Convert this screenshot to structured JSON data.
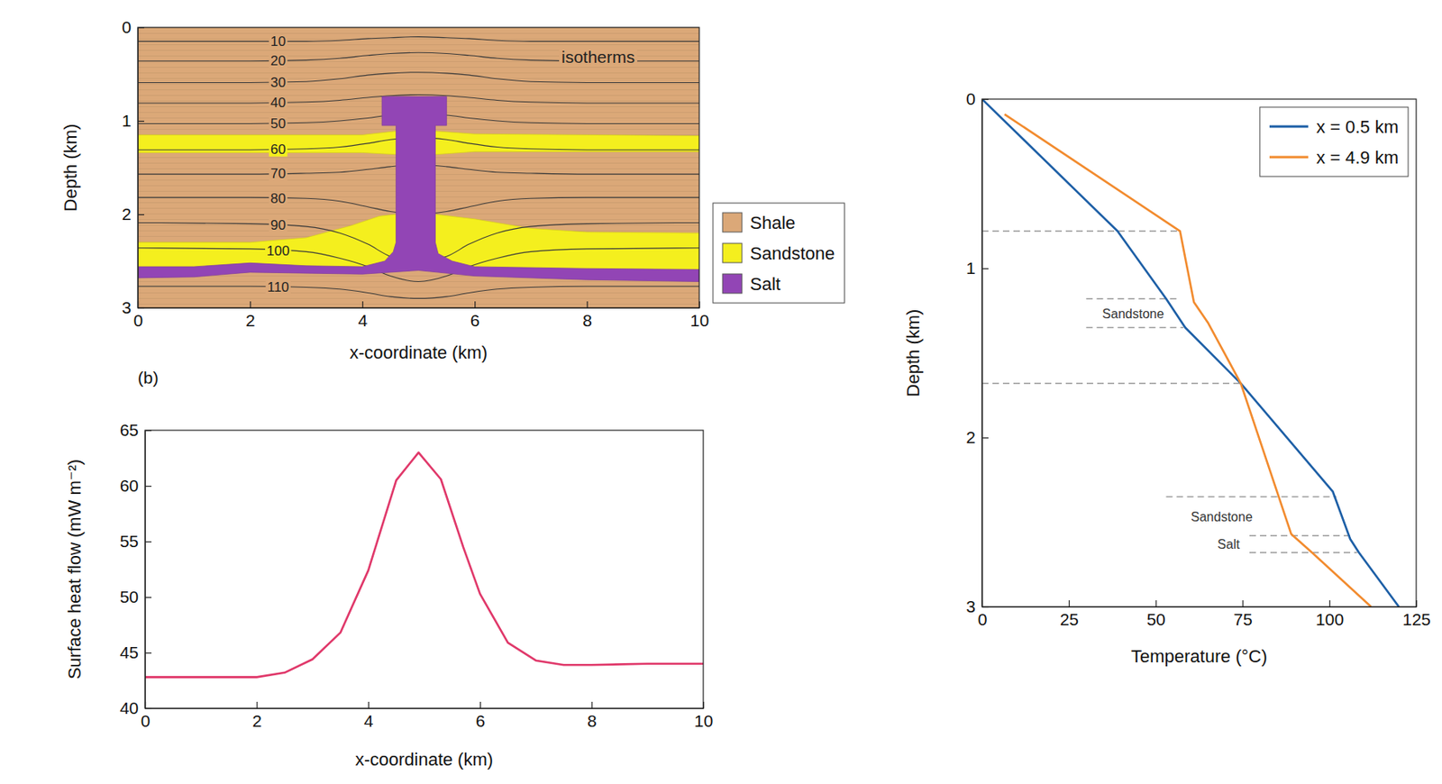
{
  "chart_data": [
    {
      "type": "cross_section",
      "xlim": [
        0,
        10
      ],
      "ylim": [
        3,
        0
      ],
      "xticks": [
        0,
        2,
        4,
        6,
        8,
        10
      ],
      "yticks": [
        0,
        1,
        2,
        3
      ],
      "x_label": "x-coordinate (km)",
      "y_label": "Depth (km)",
      "legend": "right",
      "layers": [
        {
          "name": "Shale",
          "color": "#dba878"
        },
        {
          "name": "Sandstone",
          "color": "#f4ef1e",
          "polygons": [
            [
              [
                0,
                1.15
              ],
              [
                4,
                1.15
              ],
              [
                4.6,
                1.11
              ],
              [
                5.3,
                1.11
              ],
              [
                6,
                1.14
              ],
              [
                10,
                1.16
              ],
              [
                10,
                1.33
              ],
              [
                6,
                1.33
              ],
              [
                5.3,
                1.36
              ],
              [
                4.6,
                1.36
              ],
              [
                4,
                1.34
              ],
              [
                0,
                1.34
              ]
            ],
            [
              [
                0,
                2.3
              ],
              [
                2,
                2.3
              ],
              [
                3,
                2.25
              ],
              [
                3.8,
                2.12
              ],
              [
                4.3,
                2.02
              ],
              [
                4.6,
                2.0
              ],
              [
                5.3,
                2.0
              ],
              [
                6,
                2.05
              ],
              [
                7,
                2.15
              ],
              [
                8,
                2.19
              ],
              [
                10,
                2.2
              ],
              [
                10,
                2.62
              ],
              [
                8,
                2.6
              ],
              [
                6,
                2.58
              ],
              [
                4,
                2.6
              ],
              [
                2,
                2.58
              ],
              [
                0,
                2.6
              ]
            ]
          ]
        },
        {
          "name": "Salt",
          "color": "#9245b5",
          "polygons": [
            [
              [
                0,
                2.56
              ],
              [
                1,
                2.56
              ],
              [
                2,
                2.52
              ],
              [
                3,
                2.55
              ],
              [
                4,
                2.56
              ],
              [
                4.4,
                2.5
              ],
              [
                4.55,
                2.4
              ],
              [
                4.6,
                2.3
              ],
              [
                4.6,
                1.05
              ],
              [
                4.35,
                1.05
              ],
              [
                4.35,
                0.74
              ],
              [
                5.5,
                0.74
              ],
              [
                5.5,
                1.05
              ],
              [
                5.3,
                1.05
              ],
              [
                5.3,
                2.3
              ],
              [
                5.35,
                2.42
              ],
              [
                5.6,
                2.5
              ],
              [
                6,
                2.56
              ],
              [
                8,
                2.58
              ],
              [
                10,
                2.59
              ],
              [
                10,
                2.72
              ],
              [
                8,
                2.7
              ],
              [
                6,
                2.66
              ],
              [
                5,
                2.6
              ],
              [
                4,
                2.64
              ],
              [
                2,
                2.62
              ],
              [
                1,
                2.67
              ],
              [
                0,
                2.68
              ]
            ]
          ]
        }
      ],
      "isotherms": {
        "x": [
          0,
          2,
          3,
          3.6,
          4.1,
          4.5,
          5,
          5.5,
          5.9,
          6.4,
          7,
          8,
          10
        ],
        "lines": [
          {
            "value": 10,
            "y": [
              0.15,
              0.15,
              0.15,
              0.14,
              0.12,
              0.11,
              0.1,
              0.11,
              0.12,
              0.14,
              0.15,
              0.15,
              0.15
            ]
          },
          {
            "value": 20,
            "y": [
              0.36,
              0.36,
              0.35,
              0.33,
              0.3,
              0.28,
              0.27,
              0.28,
              0.3,
              0.33,
              0.35,
              0.36,
              0.36
            ]
          },
          {
            "value": 30,
            "y": [
              0.59,
              0.59,
              0.58,
              0.55,
              0.51,
              0.49,
              0.48,
              0.49,
              0.51,
              0.55,
              0.58,
              0.59,
              0.59
            ]
          },
          {
            "value": 40,
            "y": [
              0.81,
              0.81,
              0.8,
              0.78,
              0.75,
              0.73,
              0.72,
              0.73,
              0.75,
              0.78,
              0.8,
              0.81,
              0.81
            ]
          },
          {
            "value": 50,
            "y": [
              1.03,
              1.03,
              1.02,
              1.0,
              0.97,
              0.94,
              0.93,
              0.94,
              0.97,
              1.0,
              1.02,
              1.03,
              1.03
            ]
          },
          {
            "value": 60,
            "y": [
              1.31,
              1.31,
              1.3,
              1.28,
              1.24,
              1.2,
              1.18,
              1.2,
              1.24,
              1.28,
              1.3,
              1.31,
              1.31
            ]
          },
          {
            "value": 70,
            "y": [
              1.57,
              1.57,
              1.56,
              1.55,
              1.52,
              1.49,
              1.47,
              1.49,
              1.52,
              1.55,
              1.56,
              1.57,
              1.57
            ]
          },
          {
            "value": 80,
            "y": [
              1.82,
              1.82,
              1.83,
              1.86,
              1.92,
              1.97,
              2.0,
              1.97,
              1.92,
              1.86,
              1.83,
              1.82,
              1.82
            ]
          },
          {
            "value": 90,
            "y": [
              2.09,
              2.1,
              2.13,
              2.2,
              2.32,
              2.45,
              2.5,
              2.45,
              2.32,
              2.2,
              2.13,
              2.1,
              2.09
            ]
          },
          {
            "value": 100,
            "y": [
              2.36,
              2.37,
              2.4,
              2.47,
              2.56,
              2.66,
              2.72,
              2.66,
              2.56,
              2.47,
              2.4,
              2.37,
              2.36
            ]
          },
          {
            "value": 110,
            "y": [
              2.77,
              2.77,
              2.78,
              2.8,
              2.84,
              2.88,
              2.9,
              2.88,
              2.84,
              2.8,
              2.78,
              2.77,
              2.77
            ]
          }
        ]
      },
      "annotations": [
        {
          "text": "isotherms",
          "x": 8.2,
          "y": 0.32
        }
      ]
    },
    {
      "type": "line",
      "panel_label": "(b)",
      "xlim": [
        0,
        10
      ],
      "ylim": [
        40,
        65
      ],
      "xticks": [
        0,
        2,
        4,
        6,
        8,
        10
      ],
      "yticks": [
        40,
        45,
        50,
        55,
        60,
        65
      ],
      "x_label": "x-coordinate (km)",
      "y_label": "Surface heat flow (mW m⁻²)",
      "color": "#e0386a",
      "x": [
        0,
        1,
        2,
        2.5,
        3,
        3.5,
        4,
        4.5,
        4.9,
        5.3,
        5.7,
        6,
        6.5,
        7,
        7.5,
        8,
        9,
        10
      ],
      "values": [
        42.8,
        42.8,
        42.8,
        43.2,
        44.4,
        46.8,
        52.4,
        60.5,
        63,
        60.6,
        54.5,
        50.3,
        45.9,
        44.3,
        43.9,
        43.9,
        44,
        44
      ]
    },
    {
      "type": "line",
      "xlim": [
        0,
        125
      ],
      "ylim": [
        3,
        0
      ],
      "xticks": [
        0,
        25,
        50,
        75,
        100,
        125
      ],
      "yticks": [
        0,
        1,
        2,
        3
      ],
      "x_label": "Temperature (°C)",
      "y_label": "Depth (km)",
      "legend": "upper right",
      "series": [
        {
          "name": "x = 0.5 km",
          "color": "#1d5fa6",
          "x": [
            0,
            39,
            53,
            58.5,
            74.5,
            101,
            106,
            108.5,
            120
          ],
          "y": [
            0,
            0.78,
            1.18,
            1.35,
            1.68,
            2.32,
            2.6,
            2.68,
            3.0
          ]
        },
        {
          "name": "x = 4.9 km",
          "color": "#f28b2e",
          "x": [
            6.5,
            57,
            61,
            65,
            74.5,
            89,
            95,
            112
          ],
          "y": [
            0.09,
            0.78,
            1.2,
            1.32,
            1.68,
            2.57,
            2.68,
            3.0
          ]
        }
      ],
      "depth_markers": [
        {
          "y": 0.78,
          "x": [
            0,
            57
          ]
        },
        {
          "y": 1.18,
          "x": [
            30,
            56
          ]
        },
        {
          "y": 1.35,
          "x": [
            30,
            58
          ]
        },
        {
          "y": 1.68,
          "x": [
            0,
            75
          ]
        },
        {
          "y": 2.35,
          "x": [
            53,
            102
          ]
        },
        {
          "y": 2.58,
          "x": [
            77,
            106
          ]
        },
        {
          "y": 2.68,
          "x": [
            77,
            108
          ]
        }
      ],
      "annotations": [
        {
          "text": "Sandstone",
          "x": 43.5,
          "y": 1.27
        },
        {
          "text": "Sandstone",
          "x": 69,
          "y": 2.47
        },
        {
          "text": "Salt",
          "x": 71,
          "y": 2.63
        }
      ]
    }
  ]
}
